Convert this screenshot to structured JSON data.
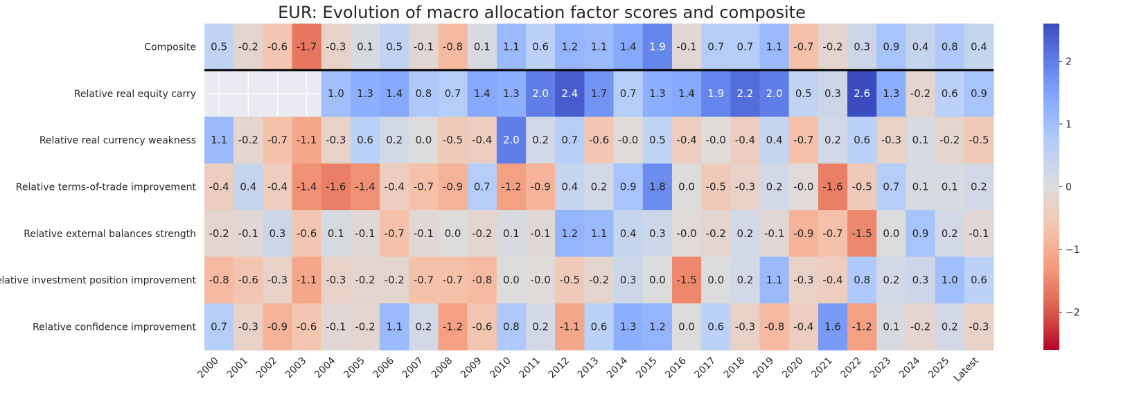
{
  "chart_data": {
    "type": "heatmap",
    "title": "EUR: Evolution of macro allocation factor scores and composite",
    "rows": [
      "Composite",
      "Relative real equity carry",
      "Relative real currency weakness",
      "Relative terms-of-trade improvement",
      "Relative external balances strength",
      "Relative investment position improvement",
      "Relative confidence improvement"
    ],
    "columns": [
      "2000",
      "2001",
      "2002",
      "2003",
      "2004",
      "2005",
      "2006",
      "2007",
      "2008",
      "2009",
      "2010",
      "2011",
      "2012",
      "2013",
      "2014",
      "2015",
      "2016",
      "2017",
      "2018",
      "2019",
      "2020",
      "2021",
      "2022",
      "2023",
      "2024",
      "2025",
      "Latest"
    ],
    "values": [
      [
        0.5,
        -0.2,
        -0.6,
        -1.7,
        -0.3,
        0.1,
        0.5,
        -0.1,
        -0.8,
        0.1,
        1.1,
        0.6,
        1.2,
        1.1,
        1.4,
        1.9,
        -0.1,
        0.7,
        0.7,
        1.1,
        -0.7,
        -0.2,
        0.3,
        0.9,
        0.4,
        0.8,
        0.4
      ],
      [
        null,
        null,
        null,
        null,
        1.0,
        1.3,
        1.4,
        0.8,
        0.7,
        1.4,
        1.3,
        2.0,
        2.4,
        1.7,
        0.7,
        1.3,
        1.4,
        1.9,
        2.2,
        2.0,
        0.5,
        0.3,
        2.6,
        1.3,
        -0.2,
        0.6,
        0.9
      ],
      [
        1.1,
        -0.2,
        -0.7,
        -1.1,
        -0.3,
        0.6,
        0.2,
        0.0,
        -0.5,
        -0.4,
        2.0,
        0.2,
        0.7,
        -0.6,
        -0.04,
        0.5,
        -0.4,
        -0.04,
        -0.4,
        0.4,
        -0.7,
        0.2,
        0.6,
        -0.3,
        0.1,
        -0.2,
        -0.5
      ],
      [
        -0.4,
        0.4,
        -0.4,
        -1.4,
        -1.6,
        -1.4,
        -0.4,
        -0.7,
        -0.9,
        0.7,
        -1.2,
        -0.9,
        0.4,
        0.2,
        0.9,
        1.8,
        0.0,
        -0.5,
        -0.3,
        0.2,
        -0.04,
        -1.6,
        -0.5,
        0.7,
        0.1,
        0.1,
        0.2
      ],
      [
        -0.2,
        -0.1,
        0.3,
        -0.6,
        0.1,
        -0.1,
        -0.7,
        -0.1,
        0.0,
        -0.2,
        0.1,
        -0.1,
        1.2,
        1.1,
        0.4,
        0.3,
        -0.04,
        -0.2,
        0.2,
        -0.1,
        -0.9,
        -0.7,
        -1.5,
        0.0,
        0.9,
        0.2,
        -0.1
      ],
      [
        -0.8,
        -0.6,
        -0.3,
        -1.1,
        -0.3,
        -0.2,
        -0.2,
        -0.7,
        -0.7,
        -0.8,
        0.0,
        -0.04,
        -0.5,
        -0.2,
        0.3,
        0.0,
        -1.5,
        0.0,
        0.2,
        1.1,
        -0.3,
        -0.4,
        0.8,
        0.2,
        0.3,
        1.0,
        0.6
      ],
      [
        0.7,
        -0.3,
        -0.9,
        -0.6,
        -0.1,
        -0.2,
        1.1,
        0.2,
        -1.2,
        -0.6,
        0.8,
        0.2,
        -1.1,
        0.6,
        1.3,
        1.2,
        0.0,
        0.6,
        -0.3,
        -0.8,
        -0.4,
        1.6,
        -1.2,
        0.1,
        -0.2,
        0.2,
        -0.3
      ]
    ],
    "display_labels": [
      [
        "0.5",
        "-0.2",
        "-0.6",
        "-1.7",
        "-0.3",
        "0.1",
        "0.5",
        "-0.1",
        "-0.8",
        "0.1",
        "1.1",
        "0.6",
        "1.2",
        "1.1",
        "1.4",
        "1.9",
        "-0.1",
        "0.7",
        "0.7",
        "1.1",
        "-0.7",
        "-0.2",
        "0.3",
        "0.9",
        "0.4",
        "0.8",
        "0.4"
      ],
      [
        "",
        "",
        "",
        "",
        "1.0",
        "1.3",
        "1.4",
        "0.8",
        "0.7",
        "1.4",
        "1.3",
        "2.0",
        "2.4",
        "1.7",
        "0.7",
        "1.3",
        "1.4",
        "1.9",
        "2.2",
        "2.0",
        "0.5",
        "0.3",
        "2.6",
        "1.3",
        "-0.2",
        "0.6",
        "0.9"
      ],
      [
        "1.1",
        "-0.2",
        "-0.7",
        "-1.1",
        "-0.3",
        "0.6",
        "0.2",
        "0.0",
        "-0.5",
        "-0.4",
        "2.0",
        "0.2",
        "0.7",
        "-0.6",
        "-0.0",
        "0.5",
        "-0.4",
        "-0.0",
        "-0.4",
        "0.4",
        "-0.7",
        "0.2",
        "0.6",
        "-0.3",
        "0.1",
        "-0.2",
        "-0.5"
      ],
      [
        "-0.4",
        "0.4",
        "-0.4",
        "-1.4",
        "-1.6",
        "-1.4",
        "-0.4",
        "-0.7",
        "-0.9",
        "0.7",
        "-1.2",
        "-0.9",
        "0.4",
        "0.2",
        "0.9",
        "1.8",
        "0.0",
        "-0.5",
        "-0.3",
        "0.2",
        "-0.0",
        "-1.6",
        "-0.5",
        "0.7",
        "0.1",
        "0.1",
        "0.2"
      ],
      [
        "-0.2",
        "-0.1",
        "0.3",
        "-0.6",
        "0.1",
        "-0.1",
        "-0.7",
        "-0.1",
        "0.0",
        "-0.2",
        "0.1",
        "-0.1",
        "1.2",
        "1.1",
        "0.4",
        "0.3",
        "-0.0",
        "-0.2",
        "0.2",
        "-0.1",
        "-0.9",
        "-0.7",
        "-1.5",
        "0.0",
        "0.9",
        "0.2",
        "-0.1"
      ],
      [
        "-0.8",
        "-0.6",
        "-0.3",
        "-1.1",
        "-0.3",
        "-0.2",
        "-0.2",
        "-0.7",
        "-0.7",
        "-0.8",
        "0.0",
        "-0.0",
        "-0.5",
        "-0.2",
        "0.3",
        "0.0",
        "-1.5",
        "0.0",
        "0.2",
        "1.1",
        "-0.3",
        "-0.4",
        "0.8",
        "0.2",
        "0.3",
        "1.0",
        "0.6"
      ],
      [
        "0.7",
        "-0.3",
        "-0.9",
        "-0.6",
        "-0.1",
        "-0.2",
        "1.1",
        "0.2",
        "-1.2",
        "-0.6",
        "0.8",
        "0.2",
        "-1.1",
        "0.6",
        "1.3",
        "1.2",
        "0.0",
        "0.6",
        "-0.3",
        "-0.8",
        "-0.4",
        "1.6",
        "-1.2",
        "0.1",
        "-0.2",
        "0.2",
        "-0.3"
      ]
    ],
    "colormap": "coolwarm_r",
    "vmin": -2.6,
    "vmax": 2.6,
    "colorbar_ticks": [
      -2,
      -1,
      0,
      1,
      2
    ],
    "colorbar_tick_labels": [
      "−2",
      "−1",
      "0",
      "1",
      "2"
    ],
    "missing_color": "#eaeaf2",
    "separator_after_row": 0,
    "grid": false,
    "xlabel": "",
    "ylabel": ""
  }
}
